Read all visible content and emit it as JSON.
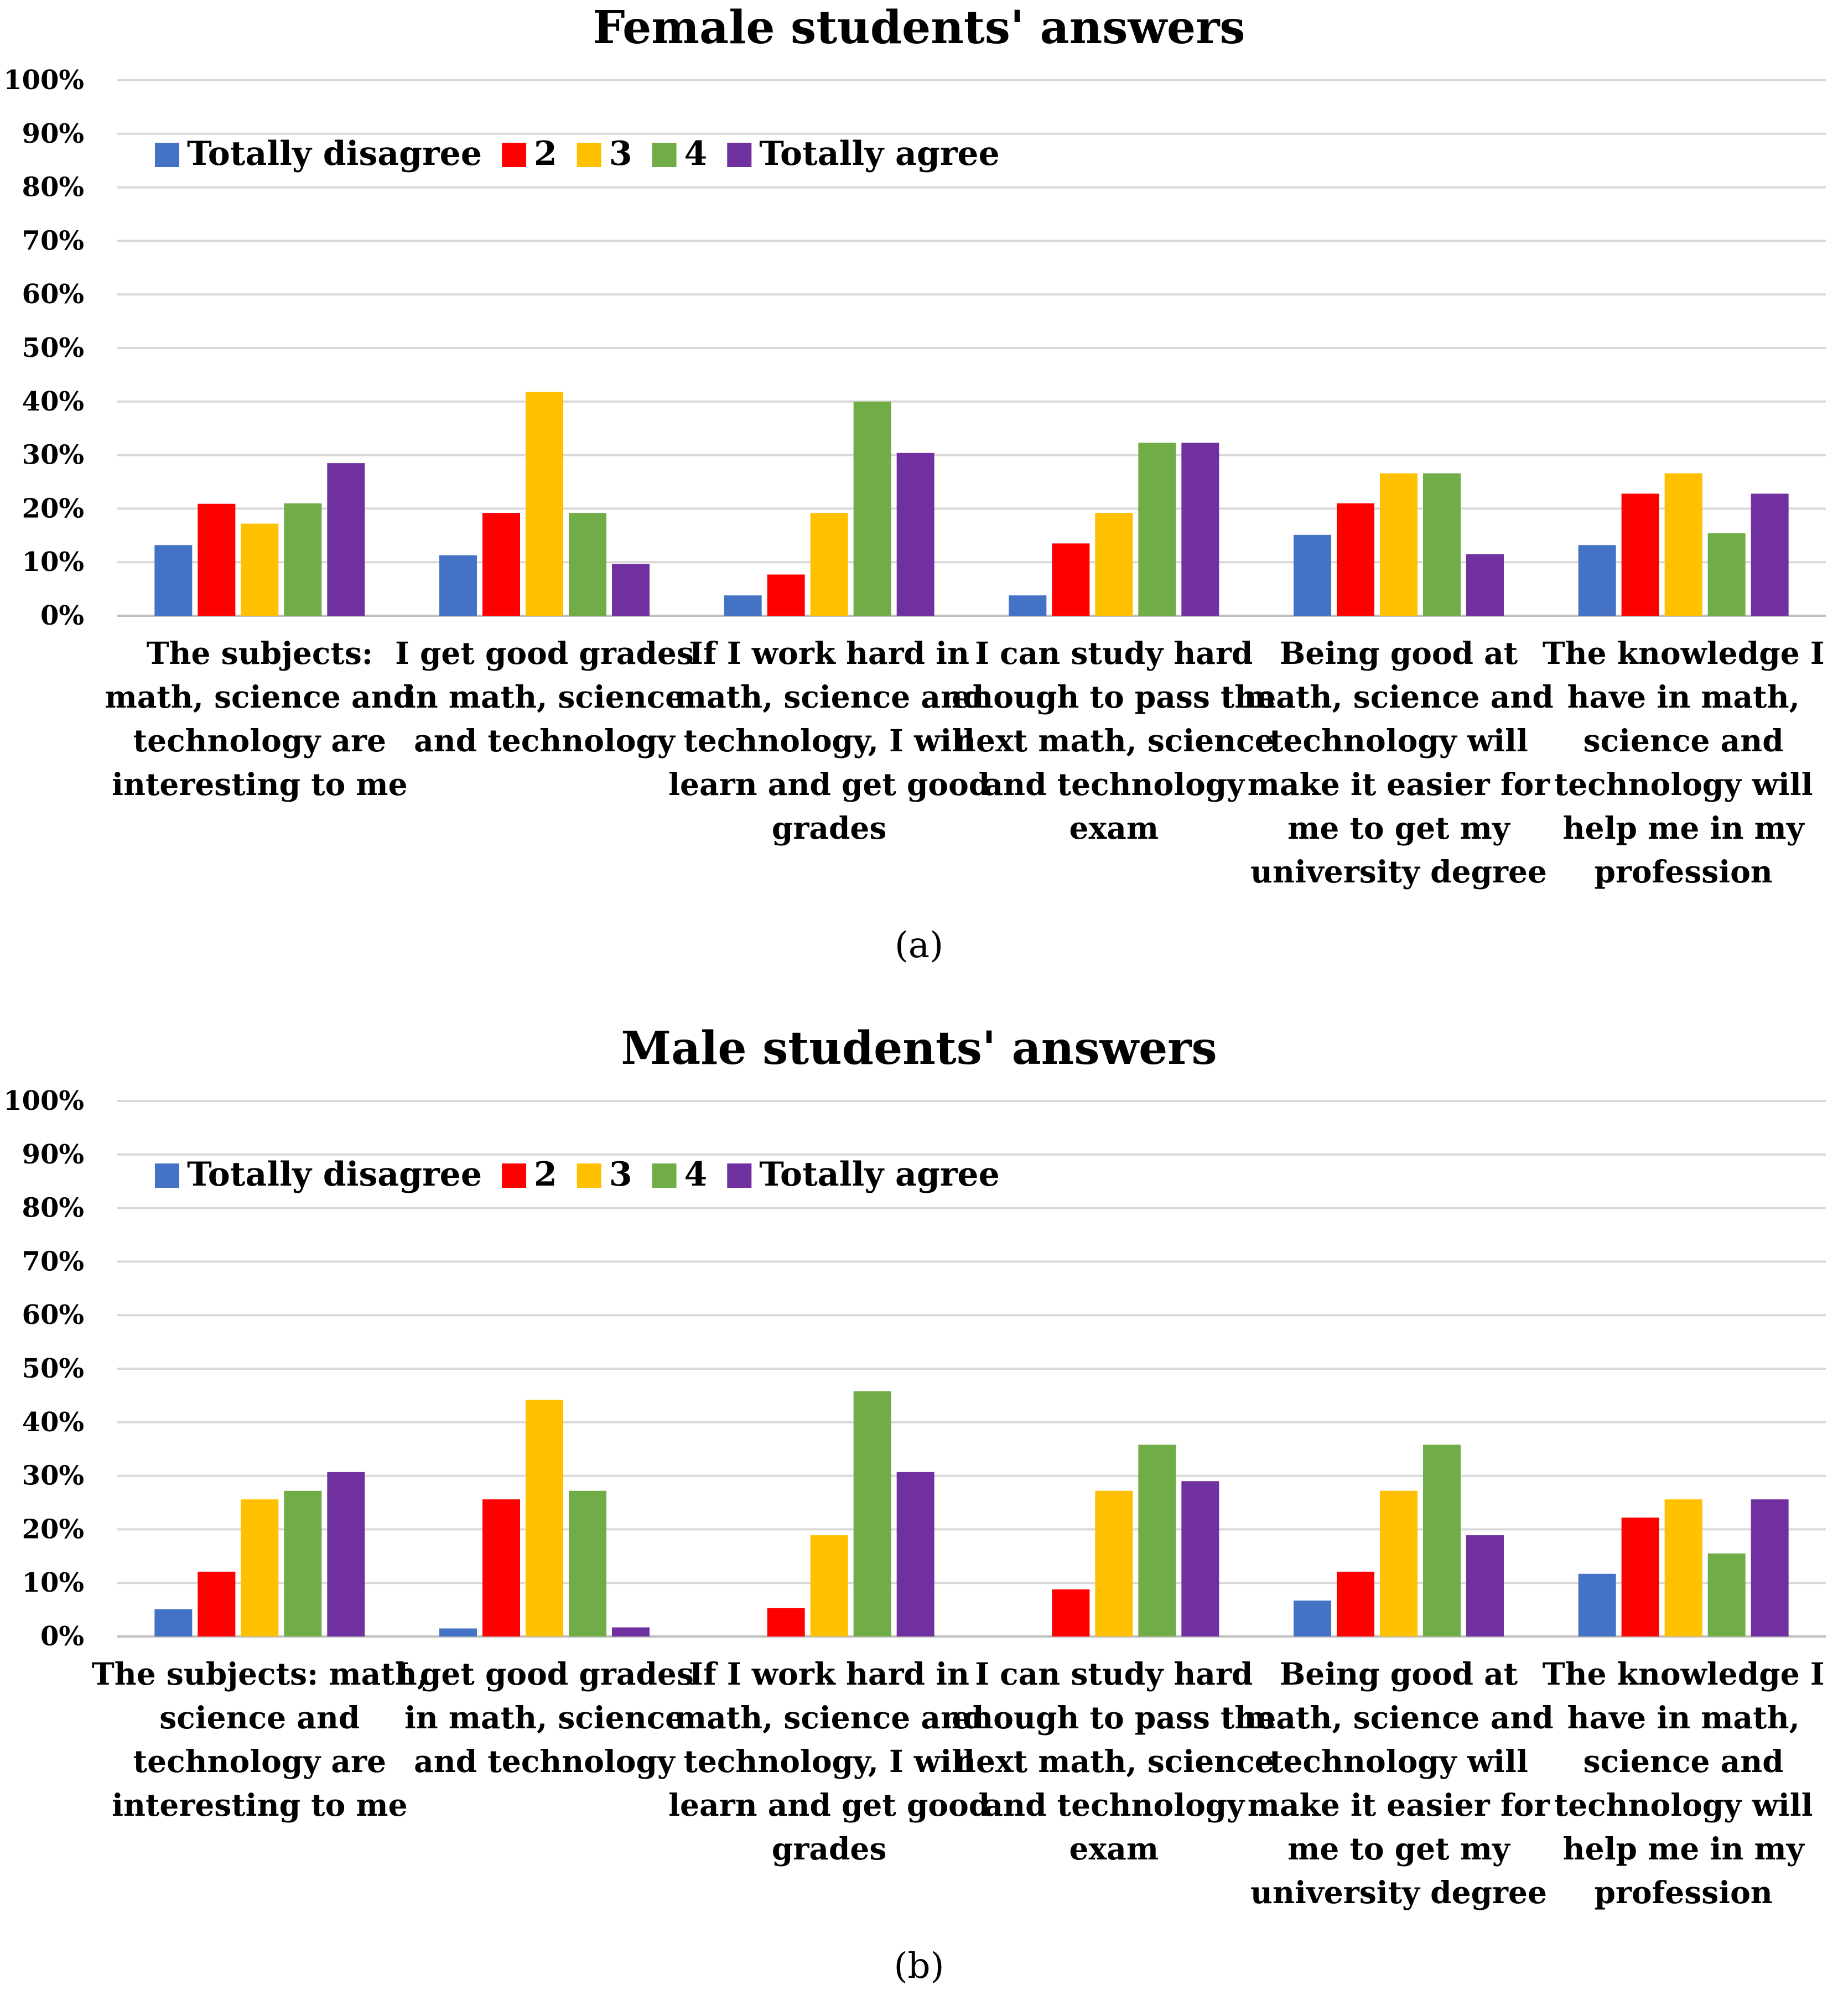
{
  "chart_data": [
    {
      "type": "bar",
      "panel_label": "(a)",
      "title": "Female students' answers",
      "xlabel": "",
      "ylabel": "",
      "ylim": [
        0,
        100
      ],
      "yticks": [
        "0%",
        "10%",
        "20%",
        "30%",
        "40%",
        "50%",
        "60%",
        "70%",
        "80%",
        "90%",
        "100%"
      ],
      "legend_position": "top-left",
      "grid": true,
      "categories": [
        [
          "The subjects:",
          "math, science and",
          "technology are",
          "interesting to me"
        ],
        [
          "I get good grades",
          "in math, science",
          "and technology"
        ],
        [
          "If I work hard in",
          "math, science and",
          "technology, I will",
          "learn and get good",
          "grades"
        ],
        [
          "I can study hard",
          "enough to pass the",
          "next math, science",
          "and technology",
          "exam"
        ],
        [
          "Being good at",
          "math, science and",
          "technology will",
          "make it easier for",
          "me to get my",
          "university degree"
        ],
        [
          "The knowledge I",
          "have in math,",
          "science and",
          "technology will",
          "help me in my",
          "profession"
        ]
      ],
      "series": [
        {
          "name": "Totally disagree",
          "color": "#4472C4",
          "values": [
            13.2,
            11.3,
            3.8,
            3.8,
            15.1,
            13.2
          ]
        },
        {
          "name": "2",
          "color": "#FF0000",
          "values": [
            20.9,
            19.2,
            7.7,
            13.5,
            21.0,
            22.8
          ]
        },
        {
          "name": "3",
          "color": "#FFC000",
          "values": [
            17.2,
            41.8,
            19.2,
            19.2,
            26.6,
            26.6
          ]
        },
        {
          "name": "4",
          "color": "#70AD47",
          "values": [
            21.0,
            19.2,
            40.0,
            32.3,
            26.6,
            15.4
          ]
        },
        {
          "name": "Totally agree",
          "color": "#7030A0",
          "values": [
            28.5,
            9.7,
            30.4,
            32.3,
            11.5,
            22.8
          ]
        }
      ]
    },
    {
      "type": "bar",
      "panel_label": "(b)",
      "title": "Male students' answers",
      "xlabel": "",
      "ylabel": "",
      "ylim": [
        0,
        100
      ],
      "yticks": [
        "0%",
        "10%",
        "20%",
        "30%",
        "40%",
        "50%",
        "60%",
        "70%",
        "80%",
        "90%",
        "100%"
      ],
      "legend_position": "top-left",
      "grid": true,
      "categories": [
        [
          "The subjects: math,",
          "science and",
          "technology are",
          "interesting to me"
        ],
        [
          "I get good grades",
          "in math, science",
          "and technology"
        ],
        [
          "If I work hard in",
          "math, science and",
          "technology, I will",
          "learn and get good",
          "grades"
        ],
        [
          "I can study hard",
          "enough to pass the",
          "next math, science",
          "and technology",
          "exam"
        ],
        [
          "Being good at",
          "math, science and",
          "technology will",
          "make it easier for",
          "me to get my",
          "university degree"
        ],
        [
          "The knowledge I",
          "have in math,",
          "science and",
          "technology will",
          "help me in my",
          "profession"
        ]
      ],
      "series": [
        {
          "name": "Totally disagree",
          "color": "#4472C4",
          "values": [
            5.1,
            1.5,
            0,
            0,
            6.7,
            11.7
          ]
        },
        {
          "name": "2",
          "color": "#FF0000",
          "values": [
            12.1,
            25.6,
            5.3,
            8.8,
            12.1,
            22.2
          ]
        },
        {
          "name": "3",
          "color": "#FFC000",
          "values": [
            25.6,
            44.2,
            18.9,
            27.2,
            27.2,
            25.6
          ]
        },
        {
          "name": "4",
          "color": "#70AD47",
          "values": [
            27.2,
            27.2,
            45.8,
            35.8,
            35.8,
            15.5
          ]
        },
        {
          "name": "Totally agree",
          "color": "#7030A0",
          "values": [
            30.7,
            1.7,
            30.7,
            29.0,
            18.9,
            25.6
          ]
        }
      ]
    }
  ]
}
